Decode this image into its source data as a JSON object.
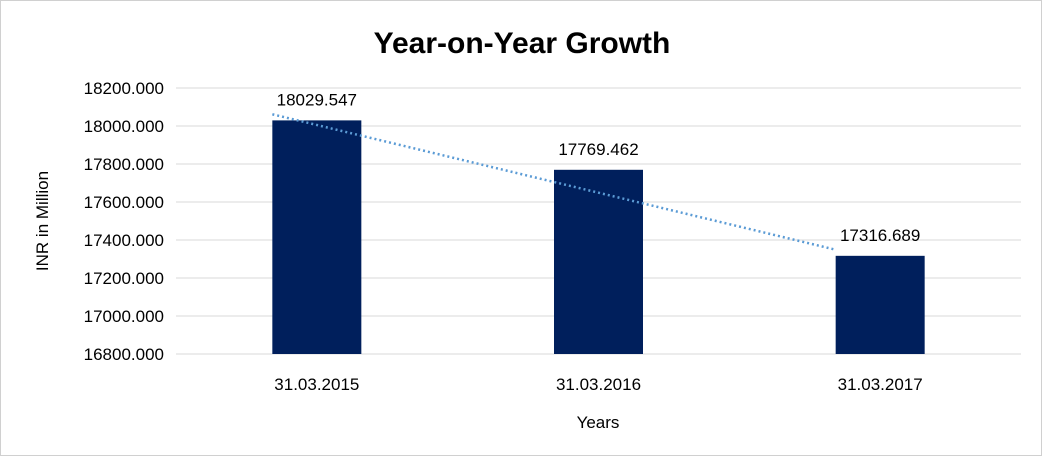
{
  "chart_data": {
    "type": "bar",
    "title": "Year-on-Year Growth",
    "xlabel": "Years",
    "ylabel": "INR in Million",
    "categories": [
      "31.03.2015",
      "31.03.2016",
      "31.03.2017"
    ],
    "values": [
      18029.547,
      17769.462,
      17316.689
    ],
    "data_labels": [
      "18029.547",
      "17769.462",
      "17316.689"
    ],
    "ylim": [
      16800,
      18200
    ],
    "yticks": [
      16800,
      17000,
      17200,
      17400,
      17600,
      17800,
      18000,
      18200
    ],
    "ytick_labels": [
      "16800.000",
      "17000.000",
      "17200.000",
      "17400.000",
      "17600.000",
      "17800.000",
      "18000.000",
      "18200.000"
    ],
    "grid": true,
    "legend": "none",
    "trendline": {
      "type": "linear",
      "style": "dotted"
    },
    "colors": {
      "bar": "#001f5c",
      "trendline": "#5b9bd5",
      "grid": "#d9d9d9"
    }
  }
}
